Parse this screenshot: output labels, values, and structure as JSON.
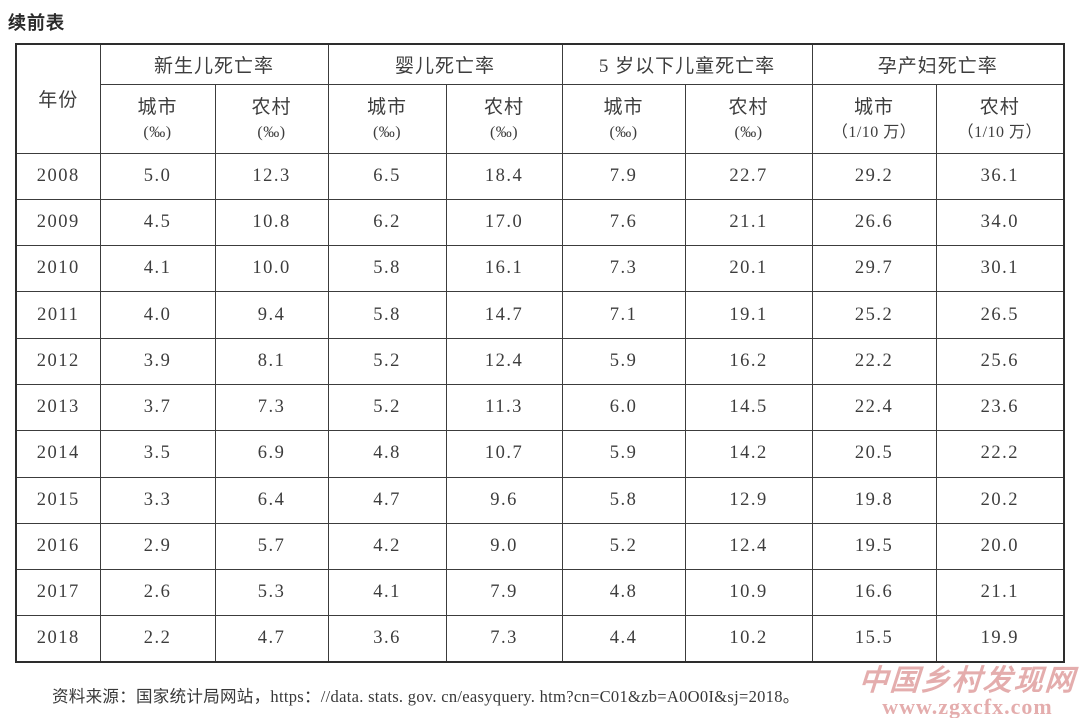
{
  "page": {
    "title": "续前表"
  },
  "table": {
    "year_header": "年份",
    "groups": [
      {
        "label": "新生儿死亡率",
        "sub": [
          {
            "area": "城市",
            "unit": "(‰)"
          },
          {
            "area": "农村",
            "unit": "(‰)"
          }
        ]
      },
      {
        "label": "婴儿死亡率",
        "sub": [
          {
            "area": "城市",
            "unit": "(‰)"
          },
          {
            "area": "农村",
            "unit": "(‰)"
          }
        ]
      },
      {
        "label": "5 岁以下儿童死亡率",
        "sub": [
          {
            "area": "城市",
            "unit": "(‰)"
          },
          {
            "area": "农村",
            "unit": "(‰)"
          }
        ]
      },
      {
        "label": "孕产妇死亡率",
        "sub": [
          {
            "area": "城市",
            "unit": "（1/10 万）"
          },
          {
            "area": "农村",
            "unit": "（1/10 万）"
          }
        ]
      }
    ],
    "rows": [
      {
        "year": "2008",
        "values": [
          "5.0",
          "12.3",
          "6.5",
          "18.4",
          "7.9",
          "22.7",
          "29.2",
          "36.1"
        ]
      },
      {
        "year": "2009",
        "values": [
          "4.5",
          "10.8",
          "6.2",
          "17.0",
          "7.6",
          "21.1",
          "26.6",
          "34.0"
        ]
      },
      {
        "year": "2010",
        "values": [
          "4.1",
          "10.0",
          "5.8",
          "16.1",
          "7.3",
          "20.1",
          "29.7",
          "30.1"
        ]
      },
      {
        "year": "2011",
        "values": [
          "4.0",
          "9.4",
          "5.8",
          "14.7",
          "7.1",
          "19.1",
          "25.2",
          "26.5"
        ]
      },
      {
        "year": "2012",
        "values": [
          "3.9",
          "8.1",
          "5.2",
          "12.4",
          "5.9",
          "16.2",
          "22.2",
          "25.6"
        ]
      },
      {
        "year": "2013",
        "values": [
          "3.7",
          "7.3",
          "5.2",
          "11.3",
          "6.0",
          "14.5",
          "22.4",
          "23.6"
        ]
      },
      {
        "year": "2014",
        "values": [
          "3.5",
          "6.9",
          "4.8",
          "10.7",
          "5.9",
          "14.2",
          "20.5",
          "22.2"
        ]
      },
      {
        "year": "2015",
        "values": [
          "3.3",
          "6.4",
          "4.7",
          "9.6",
          "5.8",
          "12.9",
          "19.8",
          "20.2"
        ]
      },
      {
        "year": "2016",
        "values": [
          "2.9",
          "5.7",
          "4.2",
          "9.0",
          "5.2",
          "12.4",
          "19.5",
          "20.0"
        ]
      },
      {
        "year": "2017",
        "values": [
          "2.6",
          "5.3",
          "4.1",
          "7.9",
          "4.8",
          "10.9",
          "16.6",
          "21.1"
        ]
      },
      {
        "year": "2018",
        "values": [
          "2.2",
          "4.7",
          "3.6",
          "7.3",
          "4.4",
          "10.2",
          "15.5",
          "19.9"
        ]
      }
    ]
  },
  "footer": {
    "source": "资料来源：国家统计局网站，https：//data. stats. gov. cn/easyquery. htm?cn=C01&zb=A0O0I&sj=2018。"
  },
  "watermark": {
    "line1": "中国乡村发现网",
    "line2": "www.zgxcfx.com",
    "color": "#d47b7b"
  },
  "colors": {
    "text": "#3d3d3d",
    "border": "#3c3c3c",
    "background": "#ffffff",
    "watermark": "#d47b7b"
  }
}
